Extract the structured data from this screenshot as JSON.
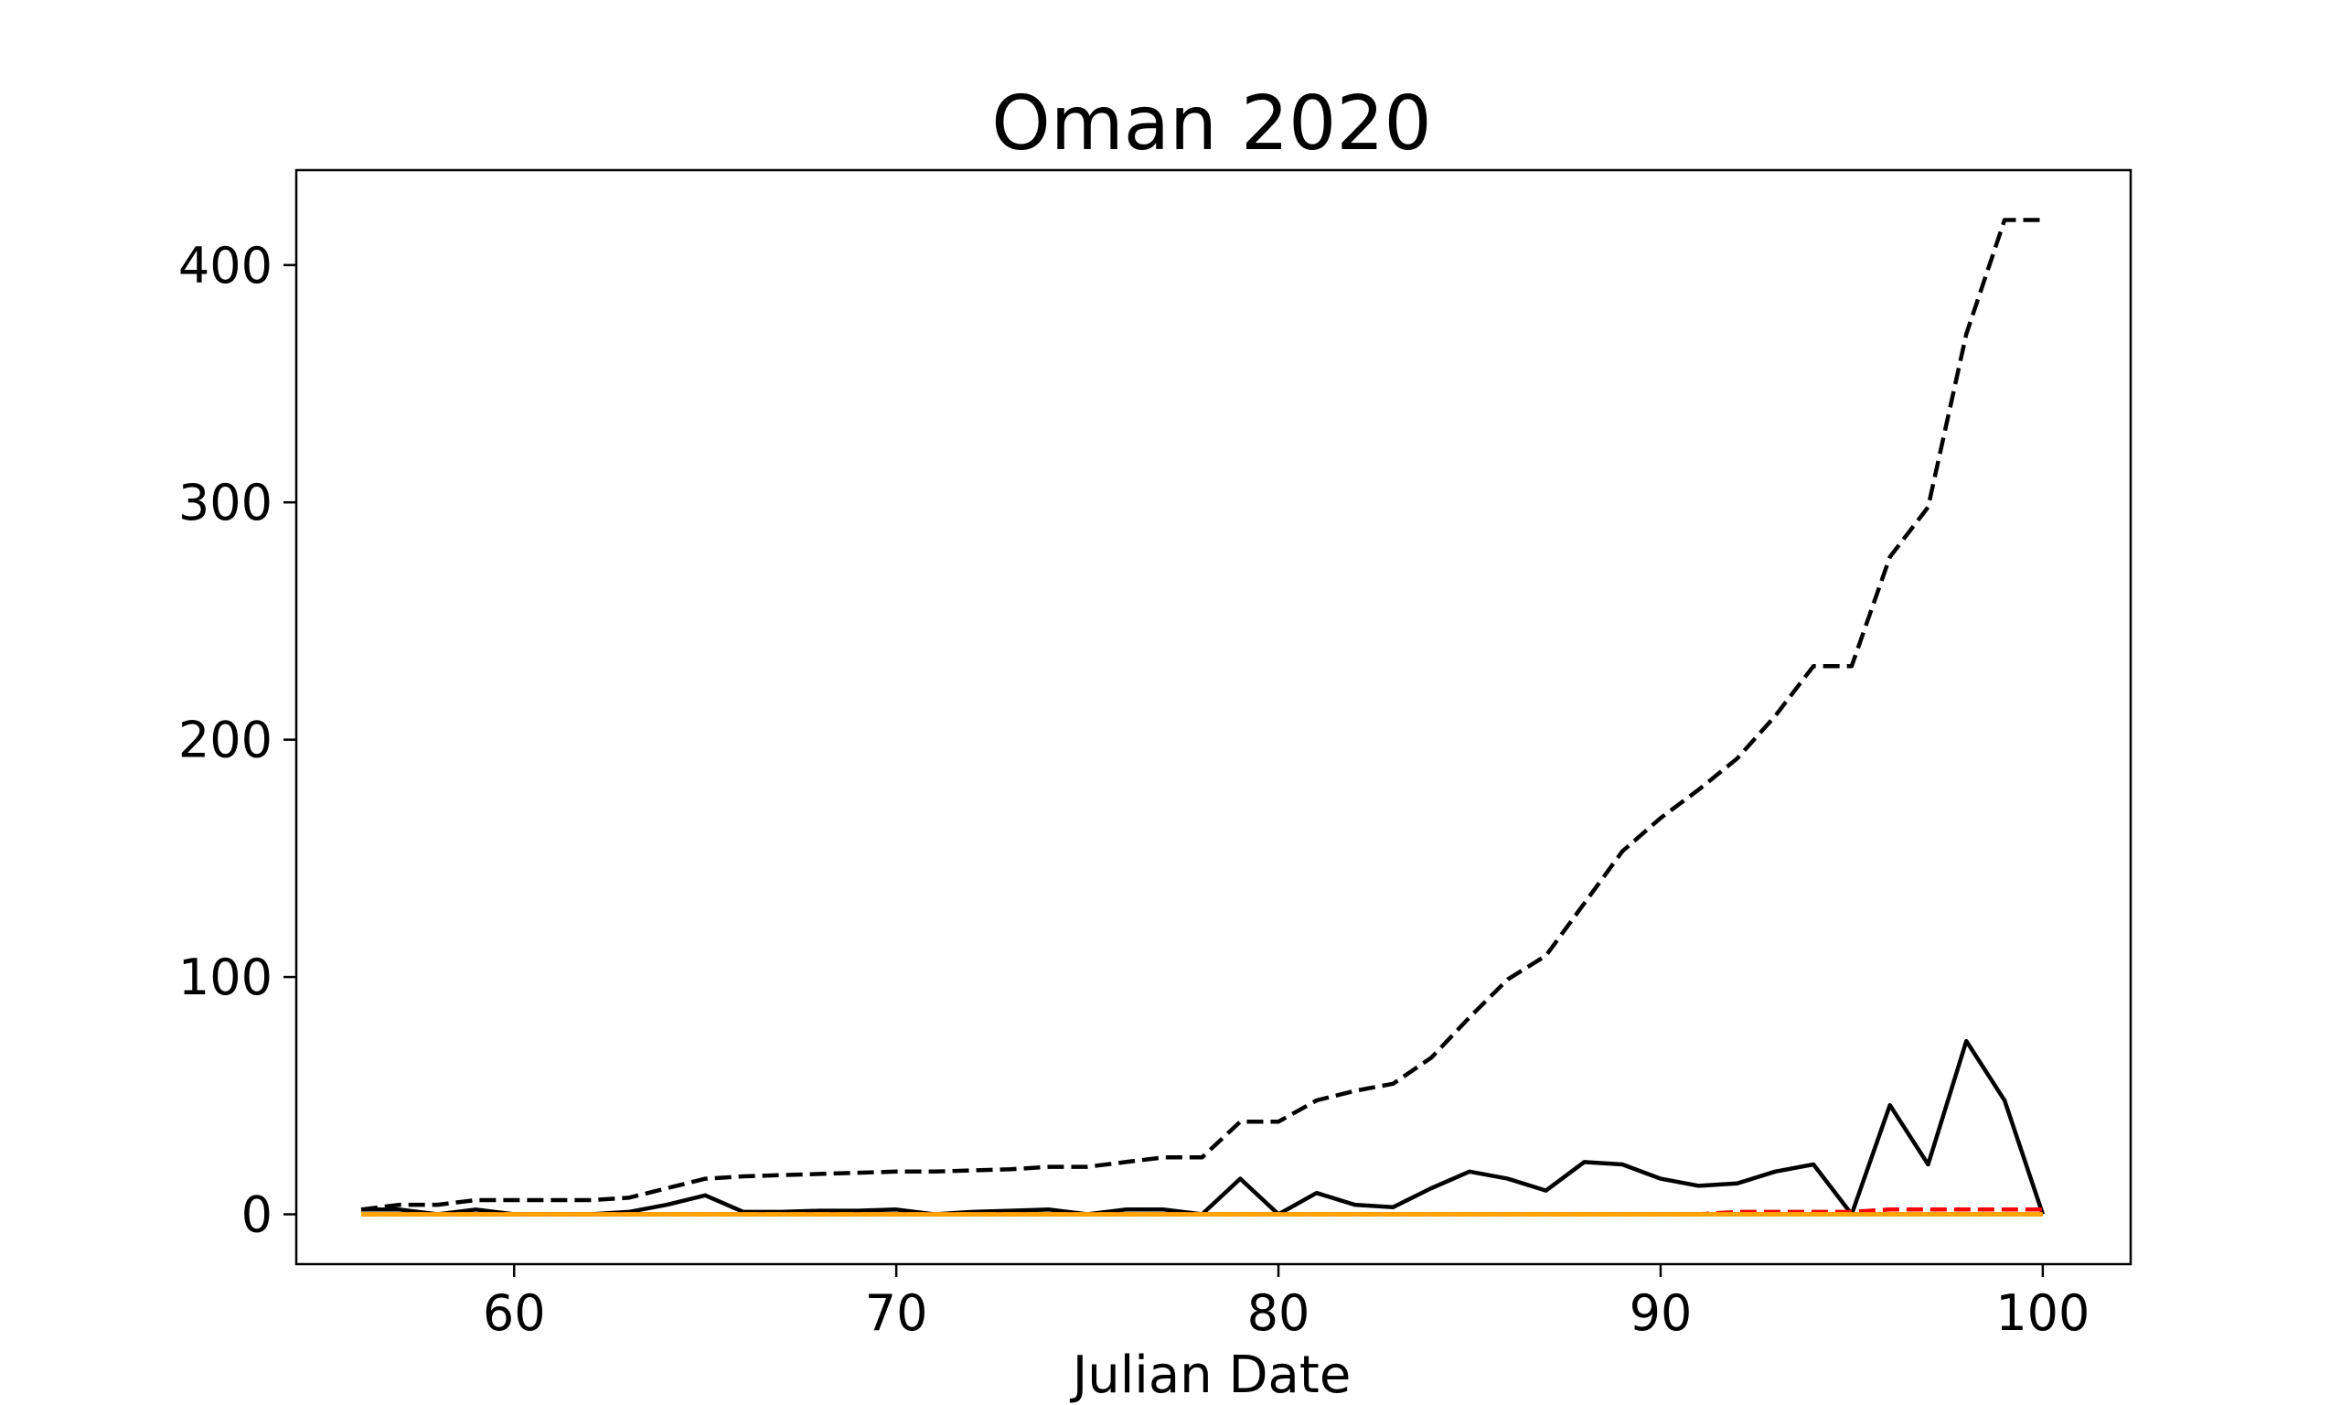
{
  "chart_data": {
    "type": "line",
    "title": "Oman 2020",
    "xlabel": "Julian Date",
    "ylabel": "",
    "xlim": [
      54.3,
      102.3
    ],
    "ylim": [
      -21,
      440
    ],
    "xticks": [
      60,
      70,
      80,
      90,
      100
    ],
    "yticks": [
      0,
      100,
      200,
      300,
      400
    ],
    "grid": false,
    "series": [
      {
        "color": "#000000",
        "dash": "dashed",
        "x": [
          56,
          57,
          58,
          59,
          60,
          61,
          62,
          63,
          64,
          65,
          66,
          67,
          68,
          69,
          70,
          71,
          72,
          73,
          74,
          75,
          76,
          77,
          78,
          79,
          80,
          81,
          82,
          83,
          84,
          85,
          86,
          87,
          88,
          89,
          90,
          91,
          92,
          93,
          94,
          95,
          96,
          97,
          98,
          99,
          100
        ],
        "y": [
          2,
          4,
          4,
          6,
          6,
          6,
          6,
          7,
          11,
          15,
          16,
          16.5,
          17,
          17.5,
          18,
          18,
          18.5,
          19,
          20,
          20,
          22,
          24,
          24,
          39,
          39,
          48,
          52,
          55,
          66,
          83,
          99,
          109,
          131,
          153,
          167,
          179,
          192,
          210,
          231,
          231,
          277,
          298,
          371,
          419,
          419
        ]
      },
      {
        "color": "#000000",
        "dash": "solid",
        "x": [
          56,
          57,
          58,
          59,
          60,
          61,
          62,
          63,
          64,
          65,
          66,
          67,
          68,
          69,
          70,
          71,
          72,
          73,
          74,
          75,
          76,
          77,
          78,
          79,
          80,
          81,
          82,
          83,
          84,
          85,
          86,
          87,
          88,
          89,
          90,
          91,
          92,
          93,
          94,
          95,
          96,
          97,
          98,
          99,
          100
        ],
        "y": [
          2,
          2,
          0,
          2,
          0,
          0,
          0,
          1,
          4,
          8,
          1,
          1,
          1.5,
          1.5,
          2,
          0,
          1,
          1.5,
          2,
          0,
          2,
          2,
          0,
          15,
          0,
          9,
          4,
          3,
          11,
          18,
          15,
          10,
          22,
          21,
          15,
          12,
          13,
          18,
          21,
          0,
          46,
          21,
          73,
          48,
          0
        ]
      },
      {
        "color": "#ff0000",
        "dash": "dashed",
        "x": [
          56,
          60,
          70,
          80,
          90,
          91,
          92,
          95,
          96,
          97,
          98,
          99,
          100
        ],
        "y": [
          0,
          0,
          0,
          0,
          0,
          0,
          1,
          1,
          2,
          2,
          2,
          2,
          2
        ]
      },
      {
        "color": "#ff0000",
        "dash": "solid",
        "x": [
          56,
          100
        ],
        "y": [
          0,
          0
        ]
      },
      {
        "color": "#ffa500",
        "dash": "dashed",
        "x": [
          56,
          100
        ],
        "y": [
          0,
          0
        ]
      },
      {
        "color": "#ffa500",
        "dash": "solid",
        "x": [
          56,
          100
        ],
        "y": [
          0,
          0
        ]
      }
    ]
  }
}
